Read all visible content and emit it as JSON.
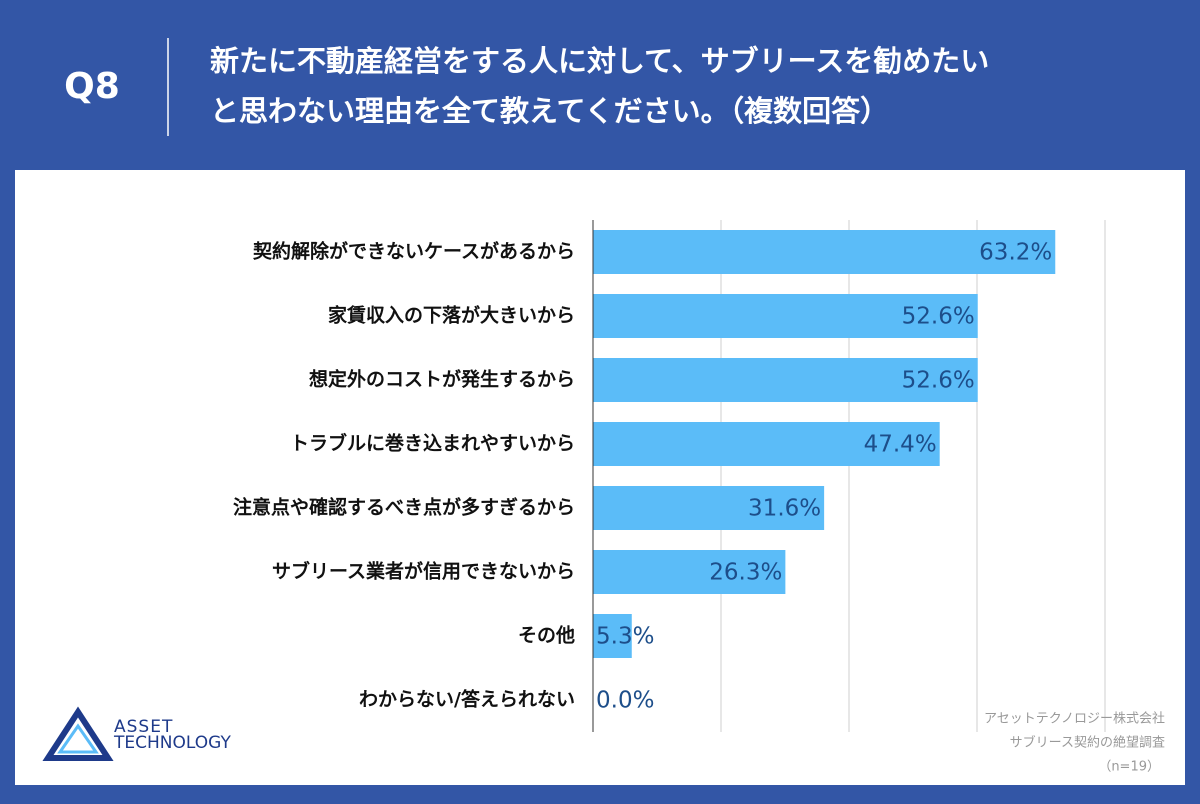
{
  "header": {
    "label": "Q8"
  },
  "chart_data": {
    "type": "barh",
    "title": [
      "新たに不動産経営をする人に対して、サブリースを勧めたい",
      "と思わない理由を全て教えてください。（複数回答）"
    ],
    "categories": [
      "契約解除ができないケースがあるから",
      "家賃収入の下落が大きいから",
      "想定外のコストが発生するから",
      "トラブルに巻き込まれやすいから",
      "注意点や確認するべき点が多すぎるから",
      "サブリース業者が信用できないから",
      "その他",
      "わからない/答えられない"
    ],
    "values": [
      63.2,
      52.6,
      52.6,
      47.4,
      31.6,
      26.3,
      5.3,
      0.0
    ],
    "value_labels": [
      "63.2%",
      "52.6%",
      "52.6%",
      "47.4%",
      "31.6%",
      "26.3%",
      "5.3%",
      "0.0%"
    ],
    "color": "#5bbcf8",
    "label_color": "#1d4e8a",
    "xlim": [
      0,
      70
    ],
    "xticks": [
      0,
      17.5,
      35,
      52.5,
      70
    ],
    "grid": true
  },
  "logo": [
    "ASSET",
    "TECHNOLOGY"
  ],
  "source": [
    "アセットテクノロジー株式会社",
    "サブリース契約の絶望調査",
    "（n=19）"
  ]
}
